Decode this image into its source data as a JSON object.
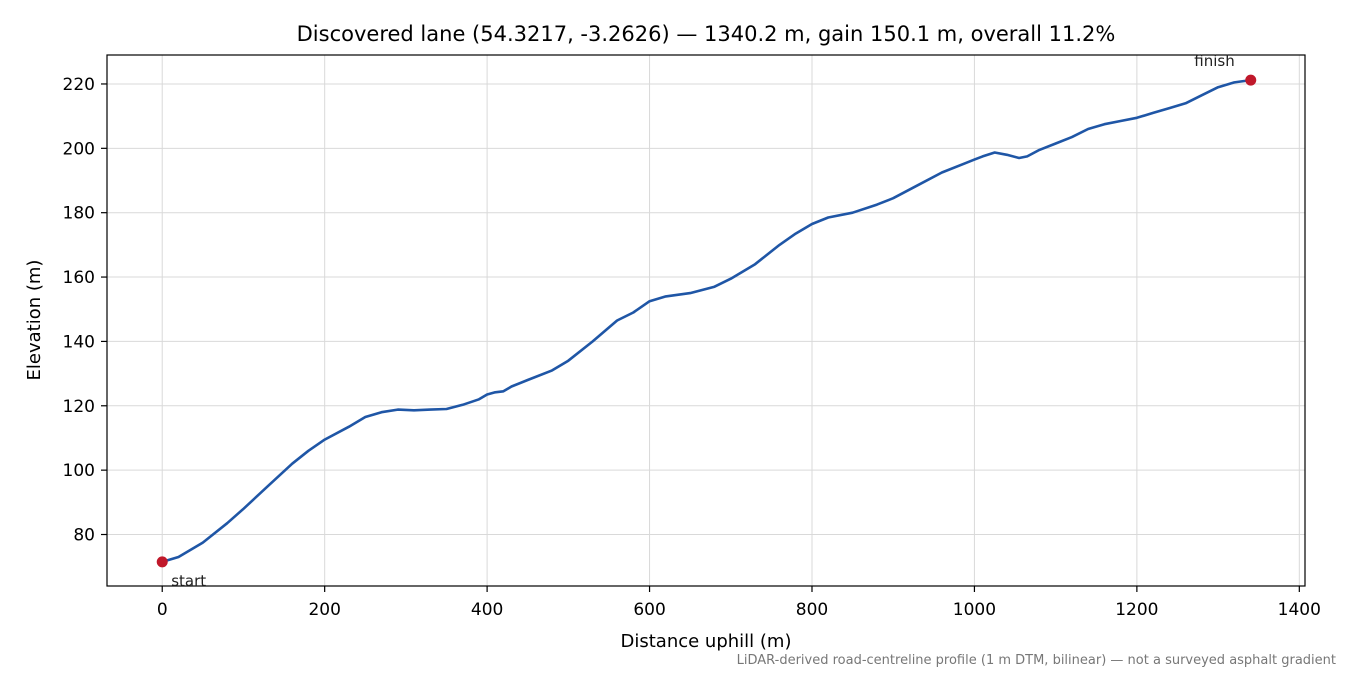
{
  "chart_data": {
    "type": "line",
    "title": "Discovered lane (54.3217, -3.2626) — 1340.2 m, gain 150.1 m, overall 11.2%",
    "xlabel": "Distance uphill (m)",
    "ylabel": "Elevation (m)",
    "xlim": [
      -68,
      1407
    ],
    "ylim": [
      64,
      229
    ],
    "xticks": [
      0,
      200,
      400,
      600,
      800,
      1000,
      1200,
      1400
    ],
    "yticks": [
      80,
      100,
      120,
      140,
      160,
      180,
      200,
      220
    ],
    "grid": true,
    "series": [
      {
        "color": "#1f56a6",
        "x": [
          0,
          20,
          50,
          80,
          100,
          130,
          160,
          180,
          200,
          230,
          250,
          270,
          290,
          310,
          330,
          350,
          370,
          390,
          400,
          410,
          420,
          430,
          450,
          480,
          500,
          530,
          560,
          580,
          600,
          620,
          650,
          680,
          700,
          730,
          760,
          780,
          800,
          820,
          850,
          880,
          900,
          930,
          960,
          990,
          1000,
          1010,
          1025,
          1040,
          1055,
          1065,
          1080,
          1100,
          1120,
          1140,
          1160,
          1180,
          1200,
          1220,
          1240,
          1260,
          1280,
          1300,
          1320,
          1340.2
        ],
        "y": [
          71.5,
          73,
          77.5,
          83.5,
          88,
          95,
          102,
          106,
          109.5,
          113.5,
          116.5,
          118,
          118.8,
          118.6,
          118.8,
          119,
          120.3,
          122,
          123.5,
          124.2,
          124.5,
          126,
          128,
          131,
          134,
          140,
          146.5,
          149,
          152.5,
          154,
          155,
          157,
          159.5,
          164,
          170,
          173.5,
          176.5,
          178.5,
          180,
          182.5,
          184.5,
          188.5,
          192.5,
          195.5,
          196.5,
          197.5,
          198.7,
          198,
          197,
          197.5,
          199.5,
          201.5,
          203.5,
          206,
          207.5,
          208.5,
          209.5,
          211,
          212.5,
          214,
          216.5,
          219,
          220.5,
          221.2
        ]
      }
    ],
    "points": [
      {
        "label": "start",
        "x": 0,
        "y": 71.5,
        "color": "#c0182a"
      },
      {
        "label": "finish",
        "x": 1340.2,
        "y": 221.2,
        "color": "#c0182a"
      }
    ],
    "footnote": "LiDAR-derived road-centreline profile (1 m DTM, bilinear) — not a surveyed asphalt gradient"
  }
}
